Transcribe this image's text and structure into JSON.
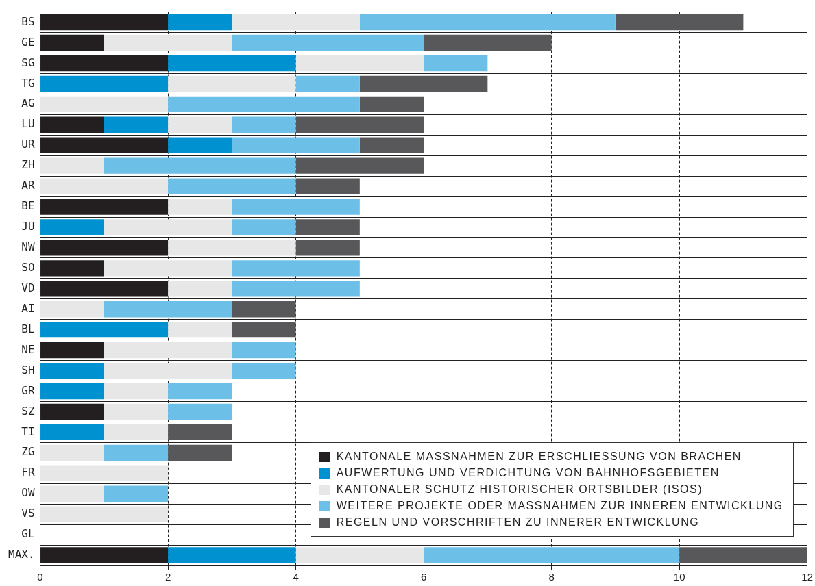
{
  "chart_data": {
    "type": "bar",
    "orientation": "horizontal",
    "stacked": true,
    "categories": [
      "BS",
      "GE",
      "SG",
      "TG",
      "AG",
      "LU",
      "UR",
      "ZH",
      "AR",
      "BE",
      "JU",
      "NW",
      "SO",
      "VD",
      "AI",
      "BL",
      "NE",
      "SH",
      "GR",
      "SZ",
      "TI",
      "ZG",
      "FR",
      "OW",
      "VS",
      "GL",
      "MAX."
    ],
    "series": [
      {
        "name": "KANTONALE MASSNAHMEN ZUR ERSCHLIESSUNG VON BRACHEN",
        "color": "#231f20",
        "values": [
          2,
          1,
          2,
          0,
          0,
          1,
          2,
          0,
          0,
          2,
          0,
          2,
          1,
          2,
          0,
          0,
          1,
          0,
          0,
          1,
          0,
          0,
          0,
          0,
          0,
          0,
          2
        ]
      },
      {
        "name": "AUFWERTUNG UND VERDICHTUNG VON BAHNHOFSGEBIETEN",
        "color": "#0092d0",
        "values": [
          1,
          0,
          2,
          2,
          0,
          1,
          1,
          0,
          0,
          0,
          1,
          0,
          0,
          0,
          0,
          2,
          0,
          1,
          1,
          0,
          1,
          0,
          0,
          0,
          0,
          0,
          2
        ]
      },
      {
        "name": "KANTONALER SCHUTZ HISTORISCHER ORTSBILDER (ISOS)",
        "color": "#e6e7e6",
        "values": [
          2,
          2,
          2,
          2,
          2,
          1,
          0,
          1,
          2,
          1,
          2,
          2,
          2,
          1,
          1,
          1,
          2,
          2,
          1,
          1,
          1,
          1,
          2,
          1,
          2,
          0,
          2
        ]
      },
      {
        "name": "WEITERE PROJEKTE ODER MASSNAHMEN ZUR INNEREN ENTWICKLUNG",
        "color": "#6cbfe6",
        "values": [
          4,
          3,
          1,
          1,
          3,
          1,
          2,
          3,
          2,
          2,
          1,
          0,
          2,
          2,
          2,
          0,
          1,
          1,
          1,
          1,
          0,
          1,
          0,
          1,
          0,
          0,
          4
        ]
      },
      {
        "name": "REGELN UND VORSCHRIFTEN ZU INNERER ENTWICKLUNG",
        "color": "#58585a",
        "values": [
          2,
          2,
          0,
          2,
          1,
          2,
          1,
          2,
          1,
          0,
          1,
          1,
          0,
          0,
          1,
          1,
          0,
          0,
          0,
          0,
          1,
          1,
          0,
          0,
          0,
          0,
          2
        ]
      }
    ],
    "xlim": [
      0,
      12
    ],
    "xticks": [
      0,
      2,
      4,
      6,
      8,
      10,
      12
    ],
    "grid": true,
    "legend": "bottom right"
  }
}
